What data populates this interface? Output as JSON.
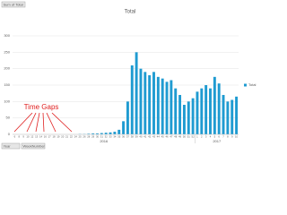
{
  "field_button": "Sum of Total",
  "axis_buttons": [
    "Year",
    "WeekNumber"
  ],
  "annotation": "Time Gaps",
  "chart_data": {
    "type": "bar",
    "title": "Total",
    "series_name": "Total",
    "color": "#1f9bd1",
    "ylim": [
      0,
      300
    ],
    "yticks": [
      0,
      50,
      100,
      150,
      200,
      250,
      300
    ],
    "grid": true,
    "legend": "right",
    "groups": [
      {
        "label": "2016",
        "categories": [
          "6",
          "8",
          "9",
          "10",
          "12",
          "13",
          "14",
          "16",
          "17",
          "18",
          "19",
          "20",
          "21",
          "22",
          "24",
          "25",
          "26",
          "28",
          "29",
          "30",
          "31",
          "32",
          "33",
          "34",
          "35",
          "36",
          "37",
          "38",
          "39",
          "40",
          "41",
          "42",
          "43",
          "44",
          "45",
          "46",
          "47",
          "48",
          "49",
          "50",
          "51",
          "52"
        ],
        "values": [
          0,
          0,
          0,
          0,
          0,
          0,
          0,
          0,
          0,
          0,
          0,
          0,
          0,
          0,
          0,
          1,
          1,
          2,
          3,
          3,
          4,
          5,
          6,
          8,
          14,
          40,
          100,
          210,
          250,
          200,
          190,
          180,
          190,
          175,
          170,
          160,
          165,
          140,
          120,
          90,
          100,
          110
        ]
      },
      {
        "label": "2017",
        "categories": [
          "1",
          "2",
          "3",
          "4",
          "5",
          "6",
          "7",
          "8",
          "9",
          "10"
        ],
        "values": [
          130,
          140,
          150,
          140,
          175,
          155,
          120,
          100,
          105,
          115
        ]
      }
    ]
  }
}
